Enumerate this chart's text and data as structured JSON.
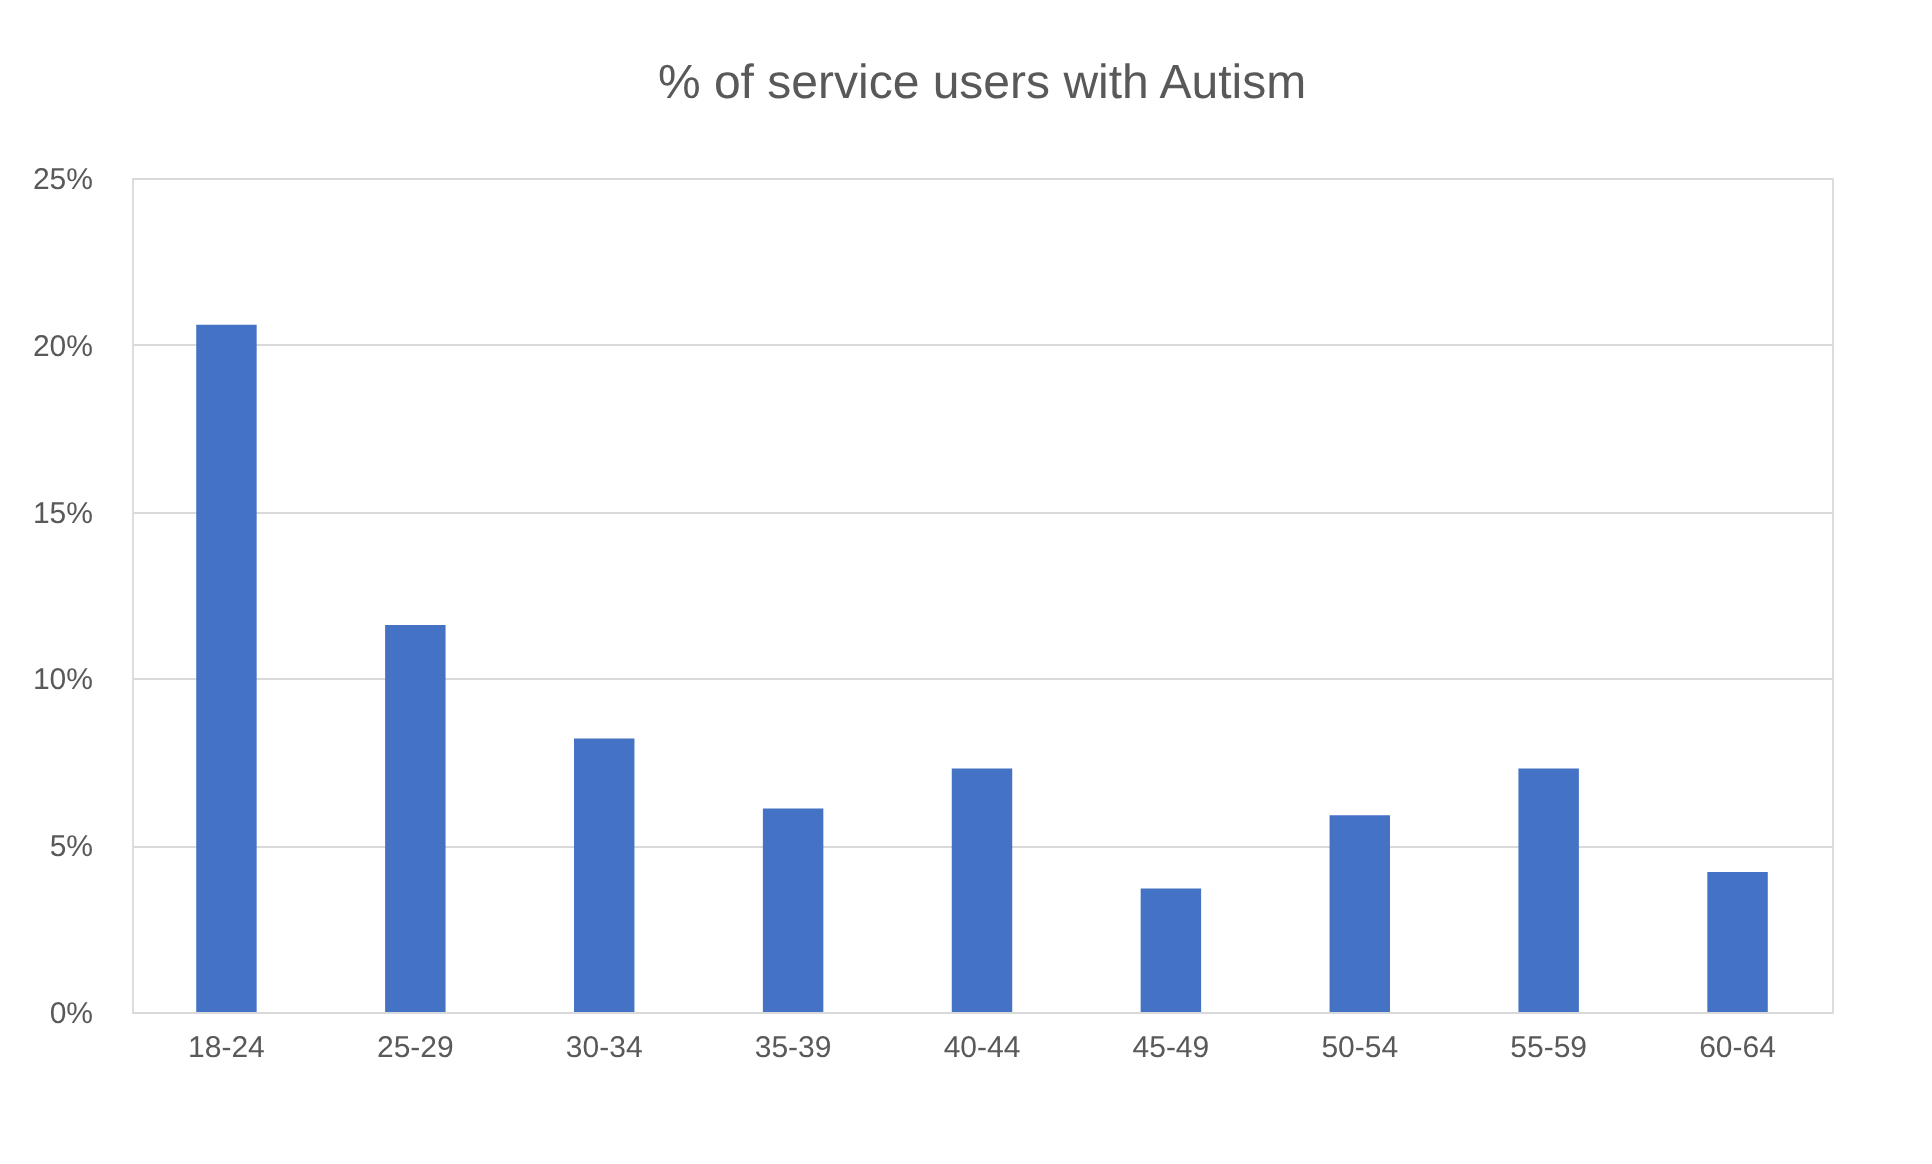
{
  "chart_data": {
    "type": "bar",
    "title": "% of service users with Autism",
    "categories": [
      "18-24",
      "25-29",
      "30-34",
      "35-39",
      "40-44",
      "45-49",
      "50-54",
      "55-59",
      "60-64"
    ],
    "values": [
      20.6,
      11.6,
      8.2,
      6.1,
      7.3,
      3.7,
      5.9,
      7.3,
      4.2
    ],
    "color": "#4472c4",
    "ylim": [
      0,
      25
    ],
    "yticks": [
      {
        "value": 0,
        "label": "0%"
      },
      {
        "value": 5,
        "label": "5%"
      },
      {
        "value": 10,
        "label": "10%"
      },
      {
        "value": 15,
        "label": "15%"
      },
      {
        "value": 20,
        "label": "20%"
      },
      {
        "value": 25,
        "label": "25%"
      }
    ],
    "grid": "y"
  }
}
